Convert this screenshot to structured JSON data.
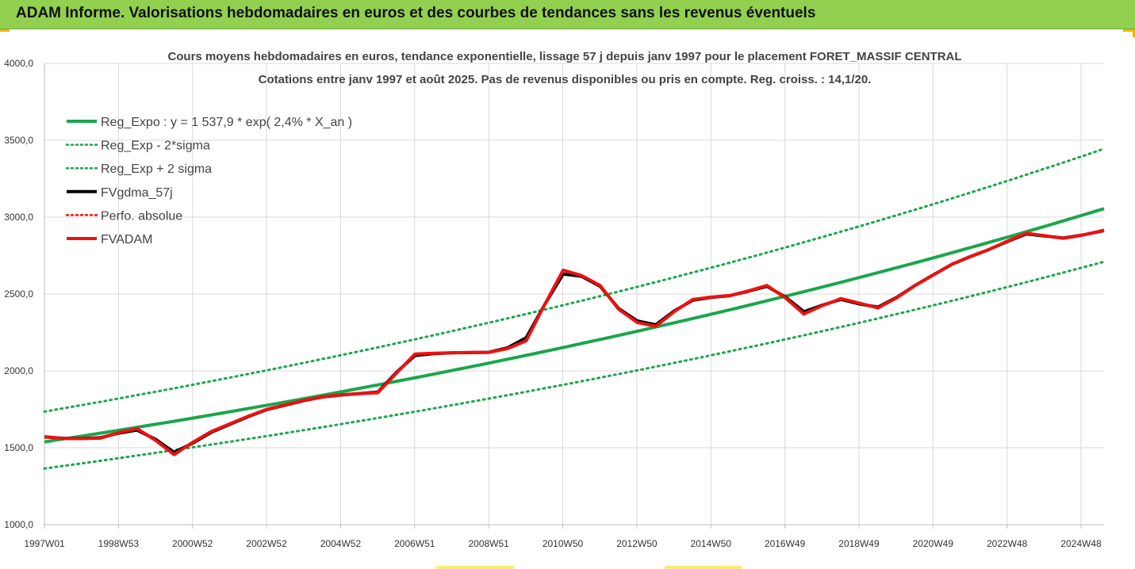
{
  "banner": {
    "title": "ADAM Informe. Valorisations hebdomadaires en euros et des courbes de tendances sans les revenus éventuels"
  },
  "colors": {
    "banner": "#92d050",
    "trend": "#1aa64b",
    "fund": "#ee1111",
    "smoothed": "#000000"
  },
  "chart_data": {
    "type": "line",
    "title": "Cours moyens hebdomadaires en euros, tendance exponentielle, lissage 57 j depuis janv 1997 pour le placement FORET_MASSIF CENTRAL",
    "subtitle": "Cotations entre janv 1997 et août 2025. Pas de revenus disponibles ou pris en compte. Reg. croiss. : 14,1/20.",
    "xlabel": "",
    "ylabel": "",
    "ylim": [
      1000,
      4000
    ],
    "yticks": [
      "1000,0",
      "1500,0",
      "2000,0",
      "2500,0",
      "3000,0",
      "3500,0",
      "4000,0"
    ],
    "x_tick_labels": [
      "1997W01",
      "1998W53",
      "2000W52",
      "2002W52",
      "2004W52",
      "2006W51",
      "2008W51",
      "2010W50",
      "2012W50",
      "2014W50",
      "2016W49",
      "2018W49",
      "2020W49",
      "2022W48",
      "2024W48"
    ],
    "grid": true,
    "legend_position": "top-left",
    "legend": [
      {
        "label": "Reg_Expo : y = 1 537,9 * exp( 2,4% *  X_an )",
        "style": "solid",
        "color": "#1aa64b"
      },
      {
        "label": "Reg_Exp - 2*sigma",
        "style": "dotted",
        "color": "#1aa64b"
      },
      {
        "label": "Reg_Exp + 2 sigma",
        "style": "dotted",
        "color": "#1aa64b"
      },
      {
        "label": "FVgdma_57j",
        "style": "solid",
        "color": "#000000"
      },
      {
        "label": "Perfo. absolue",
        "style": "dotted",
        "color": "#ee1111"
      },
      {
        "label": "FVADAM",
        "style": "solid",
        "color": "#ee1111"
      }
    ],
    "series": [
      {
        "name": "Reg_Expo : y = 1 537,9 * exp( 2,4% *  X_an )",
        "x": [
          1997.0,
          2025.6
        ],
        "y_formula_base": 1537.9,
        "y_formula_rate": 0.024
      },
      {
        "name": "Reg_Exp - 2*sigma",
        "x": [
          1997.0,
          2025.6
        ],
        "y_start": 1365,
        "y_end": 2710
      },
      {
        "name": "Reg_Exp + 2 sigma",
        "x": [
          1997.0,
          2025.6
        ],
        "y_start": 1735,
        "y_end": 3445
      },
      {
        "name": "FVADAM",
        "x": [
          1997.0,
          1997.5,
          1998.0,
          1998.5,
          1999.0,
          1999.5,
          2000.0,
          2000.5,
          2001.0,
          2001.5,
          2002.0,
          2002.5,
          2003.0,
          2004.0,
          2004.5,
          2005.0,
          2006.0,
          2006.5,
          2007.0,
          2007.5,
          2008.0,
          2008.5,
          2009.0,
          2009.5,
          2010.0,
          2010.5,
          2011.0,
          2011.5,
          2012.0,
          2012.5,
          2013.0,
          2013.5,
          2014.0,
          2014.5,
          2015.0,
          2015.5,
          2016.0,
          2016.5,
          2017.0,
          2017.5,
          2018.0,
          2018.5,
          2019.0,
          2019.5,
          2020.0,
          2020.5,
          2021.0,
          2021.5,
          2022.0,
          2022.5,
          2023.0,
          2023.5,
          2024.0,
          2024.5,
          2025.0,
          2025.6
        ],
        "y": [
          1572,
          1560,
          1560,
          1562,
          1598,
          1625,
          1548,
          1455,
          1535,
          1605,
          1655,
          1705,
          1750,
          1808,
          1830,
          1845,
          1858,
          1985,
          2110,
          2115,
          2118,
          2120,
          2120,
          2145,
          2195,
          2430,
          2655,
          2620,
          2555,
          2400,
          2315,
          2290,
          2385,
          2465,
          2480,
          2490,
          2520,
          2555,
          2475,
          2370,
          2425,
          2470,
          2440,
          2410,
          2475,
          2555,
          2625,
          2695,
          2745,
          2790,
          2845,
          2895,
          2880,
          2862,
          2882,
          2915
        ]
      },
      {
        "name": "FVgdma_57j",
        "x": [
          1997.0,
          1997.5,
          1998.0,
          1998.5,
          1999.0,
          1999.5,
          2000.0,
          2000.5,
          2001.0,
          2001.5,
          2002.0,
          2002.5,
          2003.0,
          2004.0,
          2004.5,
          2005.0,
          2006.0,
          2006.5,
          2007.0,
          2007.5,
          2008.0,
          2008.5,
          2009.0,
          2009.5,
          2010.0,
          2010.5,
          2011.0,
          2011.5,
          2012.0,
          2012.5,
          2013.0,
          2013.5,
          2014.0,
          2014.5,
          2015.0,
          2015.5,
          2016.0,
          2016.5,
          2017.0,
          2017.5,
          2018.0,
          2018.5,
          2019.0,
          2019.5,
          2020.0,
          2020.5,
          2021.0,
          2021.5,
          2022.0,
          2022.5,
          2023.0,
          2023.5,
          2024.0,
          2024.5,
          2025.0,
          2025.6
        ],
        "y": [
          1570,
          1562,
          1561,
          1565,
          1595,
          1615,
          1555,
          1470,
          1530,
          1600,
          1652,
          1702,
          1748,
          1806,
          1830,
          1843,
          1862,
          1990,
          2100,
          2112,
          2117,
          2119,
          2121,
          2150,
          2215,
          2430,
          2630,
          2615,
          2550,
          2405,
          2325,
          2300,
          2390,
          2460,
          2478,
          2489,
          2518,
          2550,
          2480,
          2385,
          2428,
          2465,
          2435,
          2415,
          2478,
          2556,
          2626,
          2694,
          2744,
          2790,
          2842,
          2890,
          2878,
          2864,
          2883,
          2912
        ]
      }
    ]
  }
}
